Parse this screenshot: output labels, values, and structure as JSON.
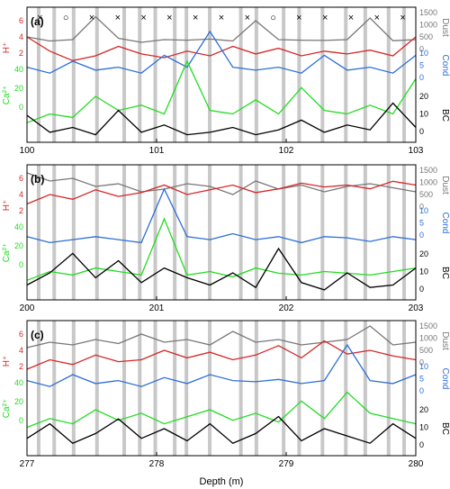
{
  "figure": {
    "xlabel": "Depth (m)",
    "colors": {
      "H": "#d62728",
      "Cond": "#2e6fd8",
      "Ca": "#22dd22",
      "BC": "#000000",
      "Dust": "#777777",
      "bands": "#c8c8c8"
    },
    "left_axis": {
      "H_label": "H⁺",
      "Ca_label": "Ca²⁺",
      "H_ticks": [
        "6",
        "4",
        "2"
      ],
      "Ca_ticks": [
        "40",
        "20",
        "0"
      ]
    },
    "right_axis": {
      "Dust_label": "Dust",
      "Cond_label": "Cond",
      "BC_label": "BC",
      "Dust_ticks": [
        "1500",
        "1000",
        "500",
        "0"
      ],
      "Cond_ticks": [
        "10",
        "5",
        "0"
      ],
      "BC_ticks": [
        "20",
        "10",
        "0"
      ]
    }
  },
  "chart_data": [
    {
      "panel": "(a)",
      "type": "line",
      "x_ticks": [
        "100",
        "101",
        "102",
        "103"
      ],
      "xlim": [
        100,
        103
      ],
      "markers": [
        "×",
        "○",
        "×",
        "×",
        "×",
        "×",
        "×",
        "×",
        "×",
        "○",
        "×",
        "×",
        "×",
        "×",
        "×"
      ],
      "series": [
        {
          "name": "Dust",
          "ylim": [
            0,
            1500
          ],
          "values": [
            600,
            450,
            500,
            1350,
            550,
            400,
            500,
            480,
            520,
            450,
            1200,
            500,
            480,
            470,
            500,
            1300,
            460,
            500
          ]
        },
        {
          "name": "H⁺",
          "ylim": [
            0,
            6
          ],
          "values": [
            4,
            2.5,
            1.5,
            2,
            3,
            2.2,
            1.8,
            2.5,
            2,
            3,
            2.2,
            2.8,
            2,
            2.5,
            2.2,
            2.6,
            2,
            4
          ]
        },
        {
          "name": "Cond",
          "ylim": [
            0,
            10
          ],
          "values": [
            4,
            3,
            5,
            3.5,
            4,
            3,
            6,
            4,
            10,
            4,
            3.5,
            4,
            3,
            6,
            3.5,
            4,
            3,
            6
          ]
        },
        {
          "name": "Ca²⁺",
          "ylim": [
            0,
            40
          ],
          "values": [
            5,
            10,
            8,
            20,
            12,
            15,
            10,
            40,
            12,
            10,
            18,
            10,
            25,
            12,
            10,
            15,
            10,
            30
          ]
        },
        {
          "name": "BC",
          "ylim": [
            0,
            20
          ],
          "values": [
            10,
            3,
            5,
            2,
            12,
            3,
            6,
            2,
            3,
            5,
            2,
            4,
            8,
            3,
            6,
            4,
            15,
            5
          ]
        }
      ]
    },
    {
      "panel": "(b)",
      "type": "line",
      "x_ticks": [
        "200",
        "201",
        "202",
        "203"
      ],
      "xlim": [
        200,
        203
      ],
      "series": [
        {
          "name": "Dust",
          "ylim": [
            0,
            1500
          ],
          "values": [
            1400,
            1100,
            1200,
            900,
            1000,
            700,
            800,
            1000,
            900,
            600,
            1100,
            800,
            950,
            700,
            900,
            1000,
            850,
            700
          ]
        },
        {
          "name": "H⁺",
          "ylim": [
            0,
            6
          ],
          "values": [
            3,
            4,
            3.5,
            4.5,
            3.8,
            4.2,
            5,
            4,
            4.5,
            5,
            4.2,
            4.6,
            5.2,
            4.8,
            5,
            4.6,
            5.4,
            5
          ]
        },
        {
          "name": "Cond",
          "ylim": [
            0,
            10
          ],
          "values": [
            2,
            1,
            1.5,
            2,
            1.5,
            1,
            10,
            2,
            1.5,
            2.5,
            1.5,
            2,
            1,
            2,
            1.8,
            1.2,
            2,
            1.5
          ]
        },
        {
          "name": "Ca²⁺",
          "ylim": [
            0,
            40
          ],
          "values": [
            5,
            10,
            8,
            12,
            10,
            8,
            40,
            8,
            10,
            7,
            12,
            9,
            8,
            10,
            9,
            8,
            10,
            12
          ]
        },
        {
          "name": "BC",
          "ylim": [
            0,
            20
          ],
          "values": [
            5,
            10,
            18,
            8,
            15,
            6,
            12,
            8,
            5,
            10,
            4,
            20,
            6,
            3,
            10,
            4,
            5,
            12
          ]
        }
      ]
    },
    {
      "panel": "(c)",
      "type": "line",
      "x_ticks": [
        "277",
        "278",
        "279",
        "280"
      ],
      "xlim": [
        277,
        280
      ],
      "series": [
        {
          "name": "Dust",
          "ylim": [
            0,
            1500
          ],
          "values": [
            700,
            900,
            800,
            1000,
            850,
            1200,
            900,
            1000,
            800,
            1300,
            900,
            1000,
            800,
            900,
            1000,
            1500,
            800,
            900
          ]
        },
        {
          "name": "H⁺",
          "ylim": [
            0,
            6
          ],
          "values": [
            2,
            3,
            2.5,
            3.5,
            2.8,
            3,
            4,
            3.2,
            3.8,
            3,
            3.5,
            4.5,
            3.2,
            5,
            3.6,
            4,
            3.4,
            3
          ]
        },
        {
          "name": "Cond",
          "ylim": [
            0,
            10
          ],
          "values": [
            4,
            3,
            5,
            3.5,
            4,
            3,
            4.5,
            3.5,
            5,
            4,
            3.8,
            4.2,
            3.5,
            4,
            10,
            4,
            3.5,
            5
          ]
        },
        {
          "name": "Ca²⁺",
          "ylim": [
            0,
            40
          ],
          "values": [
            10,
            15,
            12,
            20,
            14,
            18,
            12,
            16,
            20,
            14,
            18,
            13,
            25,
            15,
            30,
            18,
            15,
            12
          ]
        },
        {
          "name": "BC",
          "ylim": [
            0,
            20
          ],
          "values": [
            6,
            12,
            4,
            8,
            14,
            6,
            10,
            5,
            12,
            4,
            8,
            15,
            5,
            10,
            7,
            4,
            12,
            6
          ]
        }
      ]
    }
  ]
}
